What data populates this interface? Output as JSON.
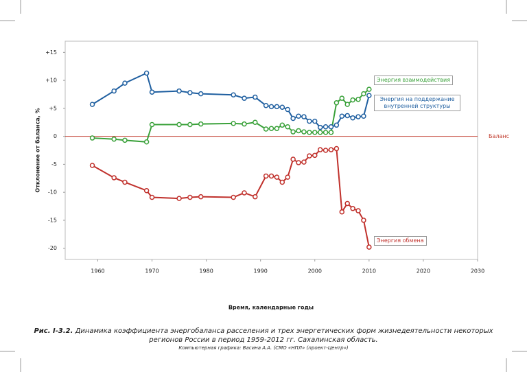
{
  "chart_data": {
    "type": "line",
    "y_label": "Отклонение от баланса, %",
    "x_label": "Время, календарные годы",
    "caption_number": "Рис. I-3.2.",
    "caption": "Динамика коэффициента энергобаланса расселения и трех энергетических форм жизнедеятельности некоторых регионов России в период 1959-2012 гг. Сахалинская область.",
    "credit": "Компьютерная графика: Васина А.А. (СМО «НПЛ» (проект-Центр»)",
    "baseline": {
      "value": 0,
      "label": "Баланс",
      "color": "#c0392b"
    },
    "xlim": [
      1954,
      2030
    ],
    "xticks": [
      1960,
      1970,
      1980,
      1990,
      2000,
      2010,
      2020,
      2030
    ],
    "ylim": [
      -22,
      17
    ],
    "yticks": [
      {
        "value": 15,
        "label": "+15"
      },
      {
        "value": 10,
        "label": "+10"
      },
      {
        "value": 5,
        "label": "+5"
      },
      0,
      -5,
      -10,
      -15,
      -20
    ],
    "x": [
      1959,
      1963,
      1965,
      1969,
      1970,
      1975,
      1977,
      1979,
      1985,
      1987,
      1989,
      1991,
      1992,
      1993,
      1994,
      1995,
      1996,
      1997,
      1998,
      1999,
      2000,
      2001,
      2002,
      2003,
      2004,
      2005,
      2006,
      2007,
      2008,
      2009,
      2010
    ],
    "series": [
      {
        "name": "Энергия взаимодействия",
        "color": "#3aa13a",
        "values": [
          -0.3,
          -0.5,
          -0.7,
          -1.0,
          2.1,
          2.1,
          2.1,
          2.2,
          2.3,
          2.2,
          2.5,
          1.3,
          1.4,
          1.4,
          2.0,
          1.7,
          0.8,
          1.0,
          0.8,
          0.7,
          0.7,
          0.7,
          0.7,
          0.7,
          6.0,
          6.8,
          5.7,
          6.5,
          6.6,
          7.6,
          8.4
        ]
      },
      {
        "name": "Энергия на поддержание внутренней структуры",
        "color": "#1f5fa0",
        "values": [
          5.7,
          8.1,
          9.5,
          11.3,
          7.9,
          8.1,
          7.8,
          7.6,
          7.4,
          6.8,
          7.0,
          5.5,
          5.3,
          5.3,
          5.2,
          4.8,
          3.2,
          3.6,
          3.5,
          2.7,
          2.7,
          1.6,
          1.7,
          1.7,
          2.0,
          3.6,
          3.7,
          3.3,
          3.5,
          3.6,
          7.3
        ]
      },
      {
        "name": "Энергия обмена",
        "color": "#c0302b",
        "values": [
          -5.2,
          -7.4,
          -8.2,
          -9.7,
          -10.9,
          -11.1,
          -10.9,
          -10.8,
          -10.9,
          -10.1,
          -10.8,
          -7.1,
          -7.1,
          -7.3,
          -8.2,
          -7.3,
          -4.1,
          -4.7,
          -4.6,
          -3.5,
          -3.4,
          -2.4,
          -2.5,
          -2.4,
          -2.2,
          -13.5,
          -12.0,
          -12.9,
          -13.3,
          -15.0,
          -19.8
        ]
      }
    ]
  }
}
